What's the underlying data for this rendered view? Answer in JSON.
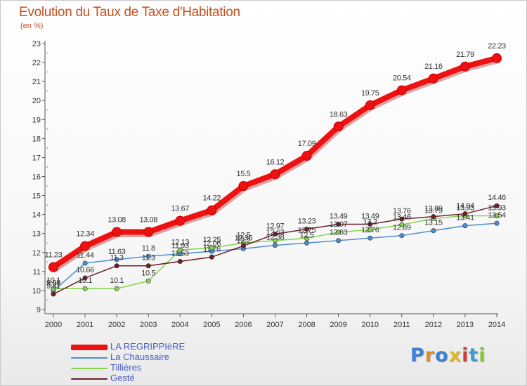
{
  "header": {
    "title": "Evolution du Taux de Taxe d'Habitation",
    "subtitle": "(en %)"
  },
  "chart_data": {
    "type": "line",
    "title": "Evolution du Taux de Taxe d'Habitation",
    "subtitle": "(en %)",
    "xlabel": "",
    "ylabel": "(en %)",
    "x": [
      "2000",
      "2001",
      "2002",
      "2003",
      "2004",
      "2005",
      "2006",
      "2007",
      "2008",
      "2009",
      "2010",
      "2011",
      "2012",
      "2013",
      "2014"
    ],
    "ylim": [
      9,
      23
    ],
    "yticks": [
      "9",
      "10",
      "11",
      "12",
      "13",
      "14",
      "15",
      "16",
      "17",
      "18",
      "19",
      "20",
      "21",
      "22",
      "23"
    ],
    "grid": false,
    "legend_position": "bottom-left",
    "series": [
      {
        "name": "LA REGRIPPIèRE",
        "color": "#ee1111",
        "values": [
          11.23,
          12.34,
          13.08,
          13.08,
          13.67,
          14.22,
          15.5,
          16.12,
          17.09,
          18.63,
          19.75,
          20.54,
          21.16,
          21.79,
          22.23
        ],
        "labels": [
          "11.23",
          "12.34",
          "13.08",
          "13.08",
          "13.67",
          "14.22",
          "15.5",
          "16.12",
          "17.09",
          "18.63",
          "19.75",
          "20.54",
          "21.16",
          "21.79",
          "22.23"
        ]
      },
      {
        "name": "La Chaussaire",
        "color": "#4c8ed0",
        "values": [
          9.98,
          11.44,
          11.63,
          11.8,
          11.93,
          12.06,
          12.2,
          12.38,
          12.5,
          12.63,
          12.76,
          12.89,
          13.15,
          13.41,
          13.54
        ],
        "labels": [
          "9.98",
          "11.44",
          "11.63",
          "11.8",
          "11.93",
          "12.06",
          "12.2",
          "12.38",
          "12.5",
          "12.63",
          "12.76",
          "12.89",
          "13.15",
          "13.41",
          "13.54"
        ]
      },
      {
        "name": "Tillières",
        "color": "#86d44e",
        "values": [
          10.1,
          10.1,
          10.1,
          10.5,
          12.13,
          12.25,
          12.5,
          12.63,
          12.75,
          13.07,
          13.2,
          13.46,
          13.79,
          13.93,
          13.93
        ],
        "labels": [
          "10.1",
          "10.1",
          "10.1",
          "10.5",
          "12.13",
          "12.25",
          "12.5",
          "12.63",
          "12.75",
          "13.07",
          "13.2",
          "13.46",
          "13.79",
          "13.93",
          "13.93"
        ]
      },
      {
        "name": "Gesté",
        "color": "#6e1f2a",
        "values": [
          9.81,
          10.66,
          11.3,
          11.3,
          11.53,
          11.76,
          12.35,
          12.97,
          13.23,
          13.49,
          13.49,
          13.76,
          13.89,
          14.04,
          14.46
        ],
        "labels": [
          "9.81",
          "10.66",
          "11.3",
          "11.3",
          "11.53",
          "11.76",
          "12.35",
          "12.97",
          "13.23",
          "13.49",
          "13.49",
          "13.76",
          "13.89",
          "14.04",
          "14.46"
        ]
      }
    ]
  },
  "logo": {
    "text": "Proxiti",
    "letters": [
      "P",
      "r",
      "o",
      "x",
      "i",
      "t",
      "i"
    ],
    "colors": [
      "#3c7fd4",
      "#e08a28",
      "#3c7fd4",
      "#e0b82a",
      "#d43c3c",
      "#3c9fd4",
      "#88c43c"
    ]
  }
}
